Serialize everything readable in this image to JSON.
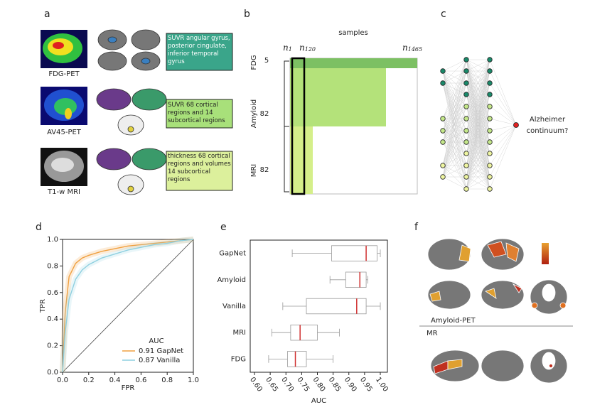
{
  "panel_a": {
    "label": "a",
    "rows": [
      {
        "name": "FDG-PET",
        "features": "SUVR angular gyrus, posterior cingulate, inferior temporal gyrus"
      },
      {
        "name": "AV45-PET",
        "features": "SUVR 68 cortical regions and 14 subcortical regions"
      },
      {
        "name": "T1-w MRI",
        "features": "thickness 68 cortical regions and volumes 14 subcortical regions"
      }
    ]
  },
  "panel_b": {
    "label": "b",
    "title": "samples",
    "columns": [
      {
        "base": "n",
        "sub": "1"
      },
      {
        "base": "n",
        "sub": "120"
      },
      {
        "base": "n",
        "sub": "1465"
      }
    ],
    "rows": [
      {
        "name": "FDG",
        "count": 5
      },
      {
        "name": "Amyloid",
        "count": 82
      },
      {
        "name": "MRI",
        "count": 82
      }
    ]
  },
  "panel_c": {
    "label": "c",
    "output": [
      "Alzheimer",
      "continuum?"
    ]
  },
  "panel_f": {
    "label": "f",
    "sections": [
      "Amyloid-PET",
      "MR"
    ]
  },
  "chart_data": [
    {
      "type": "line",
      "label": "d",
      "xlabel": "FPR",
      "ylabel": "TPR",
      "legend_title": "AUC",
      "legend": "lower right",
      "xlim": [
        0,
        1
      ],
      "ylim": [
        0,
        1
      ],
      "xticks": [
        {
          "value": 0,
          "label": "0.0"
        },
        {
          "value": 0.2,
          "label": "0.2"
        },
        {
          "value": 0.4,
          "label": "0.4"
        },
        {
          "value": 0.6,
          "label": "0.6"
        },
        {
          "value": 0.8,
          "label": "0.8"
        },
        {
          "value": 1,
          "label": "1.0"
        }
      ],
      "yticks": [
        {
          "value": 0,
          "label": "0.0"
        },
        {
          "value": 0.2,
          "label": "0.2"
        },
        {
          "value": 0.4,
          "label": "0.4"
        },
        {
          "value": 0.6,
          "label": "0.6"
        },
        {
          "value": 0.8,
          "label": "0.8"
        },
        {
          "value": 1,
          "label": "1.0"
        }
      ],
      "x": [
        0,
        0.02,
        0.05,
        0.1,
        0.15,
        0.2,
        0.3,
        0.4,
        0.5,
        0.6,
        0.7,
        0.8,
        0.9,
        1
      ],
      "series": [
        {
          "name": "0.91 GapNet",
          "color": "#f0a040",
          "values": [
            0,
            0.45,
            0.72,
            0.82,
            0.86,
            0.88,
            0.91,
            0.93,
            0.95,
            0.96,
            0.97,
            0.98,
            0.99,
            1
          ]
        },
        {
          "name": "0.87 Vanilla",
          "color": "#8fd0e0",
          "values": [
            0,
            0.3,
            0.55,
            0.7,
            0.77,
            0.81,
            0.86,
            0.89,
            0.92,
            0.94,
            0.96,
            0.97,
            0.99,
            1
          ]
        }
      ]
    },
    {
      "type": "box",
      "label": "e",
      "xlabel": "AUC",
      "xlim": [
        0.6,
        1.0
      ],
      "xticks": [
        {
          "value": 0.6,
          "label": "0.60"
        },
        {
          "value": 0.65,
          "label": "0.65"
        },
        {
          "value": 0.7,
          "label": "0.70"
        },
        {
          "value": 0.75,
          "label": "0.75"
        },
        {
          "value": 0.8,
          "label": "0.80"
        },
        {
          "value": 0.85,
          "label": "0.85"
        },
        {
          "value": 0.9,
          "label": "0.90"
        },
        {
          "value": 0.95,
          "label": "0.95"
        },
        {
          "value": 1.0,
          "label": "1.00"
        }
      ],
      "categories": [
        "GapNet",
        "Amyloid",
        "Vanilla",
        "MRI",
        "FDG"
      ],
      "category_colors": [
        "#f0a040",
        "#333333",
        "#8fd0e0",
        "#333333",
        "#333333"
      ],
      "median_color": "#d03030",
      "boxes": [
        {
          "min": 0.72,
          "q1": 0.845,
          "median": 0.955,
          "q3": 0.99,
          "max": 1.0
        },
        {
          "min": 0.84,
          "q1": 0.89,
          "median": 0.935,
          "q3": 0.955,
          "max": 0.96
        },
        {
          "min": 0.69,
          "q1": 0.765,
          "median": 0.925,
          "q3": 0.955,
          "max": 1.0
        },
        {
          "min": 0.655,
          "q1": 0.715,
          "median": 0.745,
          "q3": 0.8,
          "max": 0.87
        },
        {
          "min": 0.645,
          "q1": 0.705,
          "median": 0.73,
          "q3": 0.765,
          "max": 0.85
        }
      ]
    }
  ]
}
